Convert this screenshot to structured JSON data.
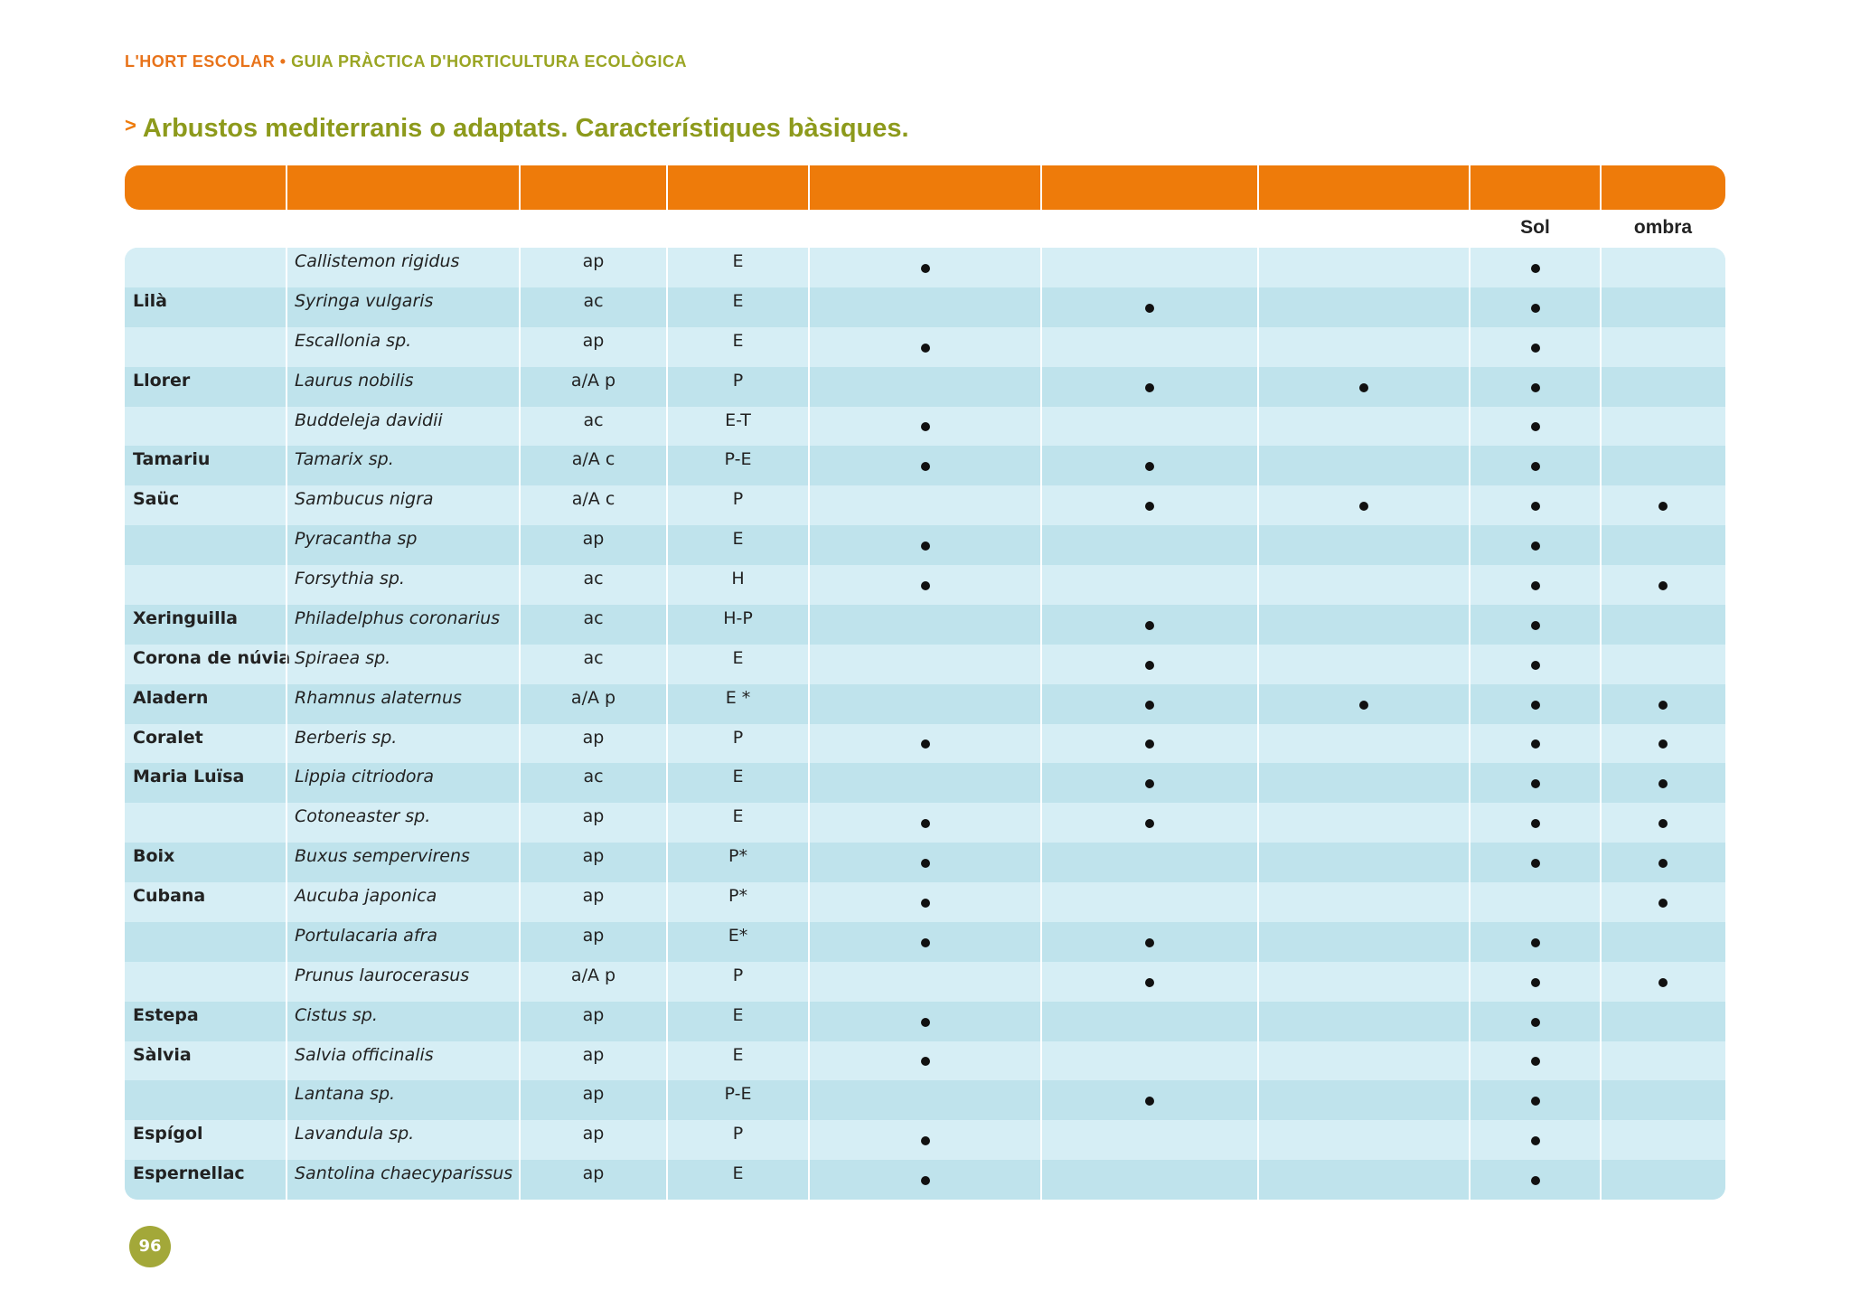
{
  "header": {
    "book": "L'HORT ESCOLAR",
    "separator": "•",
    "guide": "GUIA PRÀCTICA D'HORTICULTURA ECOLÒGICA"
  },
  "title": {
    "marker": ">",
    "text": "Arbustos mediterranis o adaptats. Característiques bàsiques."
  },
  "table": {
    "subheaders": [
      "Sol",
      "ombra"
    ],
    "rows": [
      {
        "common": null,
        "species": "Callistemon rigidus",
        "habit": "ap",
        "leaf": "E",
        "dots": [
          1,
          0,
          0,
          1,
          0
        ]
      },
      {
        "common": "Lilà",
        "species": "Syringa vulgaris",
        "habit": "ac",
        "leaf": "E",
        "dots": [
          0,
          1,
          0,
          1,
          0
        ]
      },
      {
        "common": null,
        "species": "Escallonia sp.",
        "habit": "ap",
        "leaf": "E",
        "dots": [
          1,
          0,
          0,
          1,
          0
        ]
      },
      {
        "common": "Llorer",
        "species": "Laurus nobilis",
        "habit": "a/A p",
        "leaf": "P",
        "dots": [
          0,
          1,
          1,
          1,
          0
        ]
      },
      {
        "common": null,
        "species": "Buddeleja davidii",
        "habit": "ac",
        "leaf": "E-T",
        "dots": [
          1,
          0,
          0,
          1,
          0
        ]
      },
      {
        "common": "Tamariu",
        "species": "Tamarix sp.",
        "habit": "a/A c",
        "leaf": "P-E",
        "dots": [
          1,
          1,
          0,
          1,
          0
        ]
      },
      {
        "common": "Saüc",
        "species": "Sambucus nigra",
        "habit": "a/A c",
        "leaf": "P",
        "dots": [
          0,
          1,
          1,
          1,
          1
        ]
      },
      {
        "common": null,
        "species": "Pyracantha sp",
        "habit": "ap",
        "leaf": "E",
        "dots": [
          1,
          0,
          0,
          1,
          0
        ]
      },
      {
        "common": null,
        "species": "Forsythia sp.",
        "habit": "ac",
        "leaf": "H",
        "dots": [
          1,
          0,
          0,
          1,
          1
        ]
      },
      {
        "common": "Xeringuilla",
        "species": "Philadelphus coronarius",
        "habit": "ac",
        "leaf": "H-P",
        "dots": [
          0,
          1,
          0,
          1,
          0
        ]
      },
      {
        "common": "Corona de núvia",
        "species": "Spiraea sp.",
        "habit": "ac",
        "leaf": "E",
        "dots": [
          0,
          1,
          0,
          1,
          0
        ]
      },
      {
        "common": "Aladern",
        "species": "Rhamnus alaternus",
        "habit": "a/A p",
        "leaf": "E *",
        "dots": [
          0,
          1,
          1,
          1,
          1
        ]
      },
      {
        "common": "Coralet",
        "species": "Berberis sp.",
        "habit": "ap",
        "leaf": "P",
        "dots": [
          1,
          1,
          0,
          1,
          1
        ]
      },
      {
        "common": "Maria Luïsa",
        "species": "Lippia citriodora",
        "habit": "ac",
        "leaf": "E",
        "dots": [
          0,
          1,
          0,
          1,
          1
        ]
      },
      {
        "common": null,
        "species": "Cotoneaster sp.",
        "habit": "ap",
        "leaf": "E",
        "dots": [
          1,
          1,
          0,
          1,
          1
        ]
      },
      {
        "common": "Boix",
        "species": "Buxus sempervirens",
        "habit": "ap",
        "leaf": "P*",
        "dots": [
          1,
          0,
          0,
          1,
          1
        ]
      },
      {
        "common": "Cubana",
        "species": "Aucuba japonica",
        "habit": "ap",
        "leaf": "P*",
        "dots": [
          1,
          0,
          0,
          0,
          1
        ]
      },
      {
        "common": null,
        "species": "Portulacaria afra",
        "habit": "ap",
        "leaf": "E*",
        "dots": [
          1,
          1,
          0,
          1,
          0
        ]
      },
      {
        "common": null,
        "species": "Prunus laurocerasus",
        "habit": "a/A p",
        "leaf": "P",
        "dots": [
          0,
          1,
          0,
          1,
          1
        ]
      },
      {
        "common": "Estepa",
        "species": "Cistus sp.",
        "habit": "ap",
        "leaf": "E",
        "dots": [
          1,
          0,
          0,
          1,
          0
        ]
      },
      {
        "common": "Sàlvia",
        "species": "Salvia officinalis",
        "habit": "ap",
        "leaf": "E",
        "dots": [
          1,
          0,
          0,
          1,
          0
        ]
      },
      {
        "common": null,
        "species": "Lantana sp.",
        "habit": "ap",
        "leaf": "P-E",
        "dots": [
          0,
          1,
          0,
          1,
          0
        ]
      },
      {
        "common": "Espígol",
        "species": "Lavandula sp.",
        "habit": "ap",
        "leaf": "P",
        "dots": [
          1,
          0,
          0,
          1,
          0
        ]
      },
      {
        "common": "Espernellac",
        "species": "Santolina chaecyparissus",
        "habit": "ap",
        "leaf": "E",
        "dots": [
          1,
          0,
          0,
          1,
          0
        ]
      }
    ]
  },
  "page_number": "96"
}
